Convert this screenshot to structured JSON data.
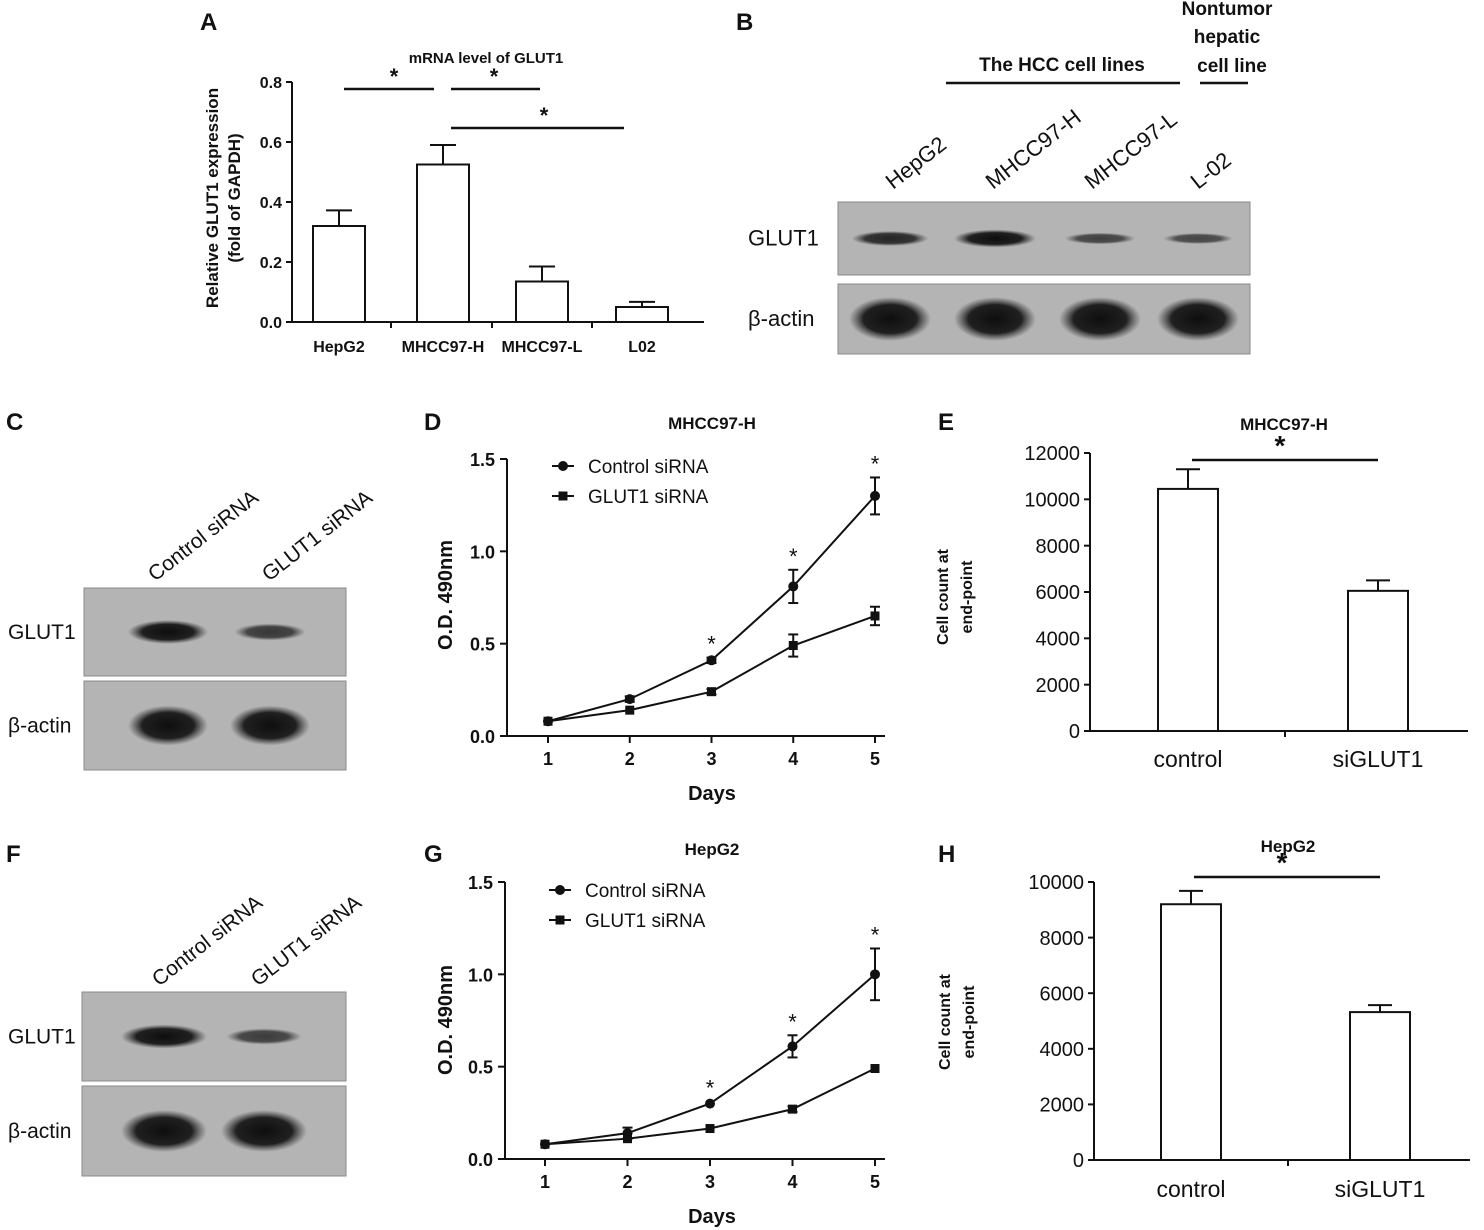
{
  "panel_letters": [
    "A",
    "B",
    "C",
    "D",
    "E",
    "F",
    "G",
    "H"
  ],
  "chart_data": [
    {
      "panel": "A",
      "type": "bar",
      "title": "mRNA level of GLUT1",
      "ylabel_line1": "Relative GLUT1 expression",
      "ylabel_line2": "(fold of GAPDH)",
      "xlabel": "",
      "categories": [
        "HepG2",
        "MHCC97-H",
        "MHCC97-L",
        "L02"
      ],
      "values": [
        0.32,
        0.525,
        0.135,
        0.05
      ],
      "errors": [
        0.052,
        0.065,
        0.05,
        0.017
      ],
      "ylim": [
        0,
        0.8
      ],
      "yticks": [
        0.0,
        0.2,
        0.4,
        0.6,
        0.8
      ],
      "ytick_labels": [
        "0.0",
        "0.2",
        "0.4",
        "0.6",
        "0.8"
      ],
      "significance": [
        {
          "from": 0,
          "to": 1,
          "label": "*"
        },
        {
          "from": 1,
          "to": 2,
          "label": "*"
        },
        {
          "from": 1,
          "to": 3,
          "label": "*"
        }
      ]
    },
    {
      "panel": "D",
      "type": "line",
      "title": "MHCC97-H",
      "xlabel": "Days",
      "ylabel": "O.D. 490nm",
      "x": [
        1,
        2,
        3,
        4,
        5
      ],
      "ylim": [
        0,
        1.5
      ],
      "yticks": [
        0.0,
        0.5,
        1.0,
        1.5
      ],
      "ytick_labels": [
        "0.0",
        "0.5",
        "1.0",
        "1.5"
      ],
      "series": [
        {
          "name": "Control siRNA",
          "marker": "circle",
          "values": [
            0.08,
            0.2,
            0.41,
            0.81,
            1.3
          ],
          "errors": [
            0.01,
            0.015,
            0.015,
            0.09,
            0.1
          ]
        },
        {
          "name": "GLUT1 siRNA",
          "marker": "square",
          "values": [
            0.08,
            0.14,
            0.24,
            0.49,
            0.65
          ],
          "errors": [
            0.01,
            0.01,
            0.015,
            0.06,
            0.05
          ]
        }
      ],
      "asterisks_at_x": [
        3,
        4,
        5
      ],
      "asterisk_label": "*",
      "legend_position": "top-left"
    },
    {
      "panel": "E",
      "type": "bar",
      "title": "MHCC97-H",
      "ylabel_line1": "Cell count at",
      "ylabel_line2": "end-point",
      "xlabel": "",
      "categories": [
        "control",
        "siGLUT1"
      ],
      "values": [
        10450,
        6050
      ],
      "errors": [
        850,
        450
      ],
      "ylim": [
        0,
        12000
      ],
      "yticks": [
        0,
        2000,
        4000,
        6000,
        8000,
        10000,
        12000
      ],
      "ytick_labels": [
        "0",
        "2000",
        "4000",
        "6000",
        "8000",
        "10000",
        "12000"
      ],
      "significance": [
        {
          "from": 0,
          "to": 1,
          "label": "*"
        }
      ]
    },
    {
      "panel": "G",
      "type": "line",
      "title": "HepG2",
      "xlabel": "Days",
      "ylabel": "O.D. 490nm",
      "x": [
        1,
        2,
        3,
        4,
        5
      ],
      "ylim": [
        0,
        1.5
      ],
      "yticks": [
        0.0,
        0.5,
        1.0,
        1.5
      ],
      "ytick_labels": [
        "0.0",
        "0.5",
        "1.0",
        "1.5"
      ],
      "series": [
        {
          "name": "Control siRNA",
          "marker": "circle",
          "values": [
            0.08,
            0.14,
            0.3,
            0.61,
            1.0
          ],
          "errors": [
            0.01,
            0.03,
            0.012,
            0.06,
            0.14
          ]
        },
        {
          "name": "GLUT1 siRNA",
          "marker": "square",
          "values": [
            0.08,
            0.11,
            0.165,
            0.27,
            0.49
          ],
          "errors": [
            0.01,
            0.01,
            0.01,
            0.015,
            0.01
          ]
        }
      ],
      "asterisks_at_x": [
        3,
        4,
        5
      ],
      "asterisk_label": "*",
      "legend_position": "top-left"
    },
    {
      "panel": "H",
      "type": "bar",
      "title": "HepG2",
      "ylabel_line1": "Cell count at",
      "ylabel_line2": "end-point",
      "xlabel": "",
      "categories": [
        "control",
        "siGLUT1"
      ],
      "values": [
        9200,
        5320
      ],
      "errors": [
        480,
        250
      ],
      "ylim": [
        0,
        10000
      ],
      "yticks": [
        0,
        2000,
        4000,
        6000,
        8000,
        10000
      ],
      "ytick_labels": [
        "0",
        "2000",
        "4000",
        "6000",
        "8000",
        "10000"
      ],
      "significance": [
        {
          "from": 0,
          "to": 1,
          "label": "*"
        }
      ]
    }
  ],
  "blots": [
    {
      "panel": "B",
      "header_line1": "The HCC cell lines",
      "header2_lines": [
        "Nontumor",
        "hepatic",
        "cell line"
      ],
      "lanes": [
        "HepG2",
        "MHCC97-H",
        "MHCC97-L",
        "L-02"
      ],
      "rows": [
        {
          "label": "GLUT1",
          "intensity": [
            0.75,
            1.0,
            0.45,
            0.4
          ]
        },
        {
          "label": "β-actin",
          "intensity": [
            1.0,
            1.0,
            1.0,
            1.0
          ]
        }
      ]
    },
    {
      "panel": "C",
      "lanes": [
        "Control siRNA",
        "GLUT1 siRNA"
      ],
      "rows": [
        {
          "label": "GLUT1",
          "intensity": [
            1.0,
            0.55
          ]
        },
        {
          "label": "β-actin",
          "intensity": [
            1.0,
            1.0
          ]
        }
      ]
    },
    {
      "panel": "F",
      "lanes": [
        "Control siRNA",
        "GLUT1 siRNA"
      ],
      "rows": [
        {
          "label": "GLUT1",
          "intensity": [
            1.0,
            0.5
          ]
        },
        {
          "label": "β-actin",
          "intensity": [
            1.0,
            1.0
          ]
        }
      ]
    }
  ]
}
